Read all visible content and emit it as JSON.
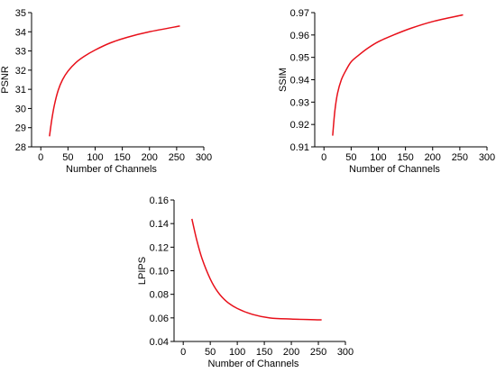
{
  "colors": {
    "curve": "#e8101a",
    "axis": "#000000"
  },
  "chart_data": [
    {
      "type": "line",
      "xlabel": "Number of Channels",
      "ylabel": "PSNR",
      "xlim": [
        -17,
        300
      ],
      "ylim": [
        28,
        35
      ],
      "xticks": [
        0,
        50,
        100,
        150,
        200,
        250,
        300
      ],
      "yticks": [
        28,
        29,
        30,
        31,
        32,
        33,
        34,
        35
      ],
      "series": [
        {
          "x": [
            16,
            20,
            25,
            32,
            40,
            50,
            64,
            80,
            100,
            128,
            160,
            200,
            256
          ],
          "values": [
            28.55,
            29.38,
            30.18,
            30.95,
            31.5,
            31.95,
            32.38,
            32.72,
            33.05,
            33.42,
            33.72,
            34.0,
            34.3
          ]
        }
      ]
    },
    {
      "type": "line",
      "xlabel": "Number of Channels",
      "ylabel": "SSIM",
      "xlim": [
        -17,
        300
      ],
      "ylim": [
        0.91,
        0.97
      ],
      "xticks": [
        0,
        50,
        100,
        150,
        200,
        250,
        300
      ],
      "yticks": [
        "0.91",
        "0.92",
        "0.93",
        "0.94",
        "0.95",
        "0.96",
        "0.97"
      ],
      "series": [
        {
          "x": [
            16,
            20,
            25,
            32,
            40,
            50,
            64,
            80,
            100,
            128,
            160,
            200,
            256
          ],
          "values": [
            0.915,
            0.926,
            0.934,
            0.94,
            0.944,
            0.948,
            0.951,
            0.954,
            0.957,
            0.96,
            0.963,
            0.966,
            0.969
          ]
        }
      ]
    },
    {
      "type": "line",
      "xlabel": "Number of Channels",
      "ylabel": "LPIPS",
      "xlim": [
        -17,
        300
      ],
      "ylim": [
        0.04,
        0.16
      ],
      "xticks": [
        0,
        50,
        100,
        150,
        200,
        250,
        300
      ],
      "yticks": [
        "0.04",
        "0.06",
        "0.08",
        "0.10",
        "0.12",
        "0.14",
        "0.16"
      ],
      "series": [
        {
          "x": [
            16,
            25,
            35,
            50,
            64,
            80,
            100,
            128,
            160,
            200,
            256
          ],
          "values": [
            0.144,
            0.126,
            0.11,
            0.093,
            0.082,
            0.074,
            0.068,
            0.063,
            0.06,
            0.059,
            0.0583
          ]
        }
      ]
    }
  ]
}
